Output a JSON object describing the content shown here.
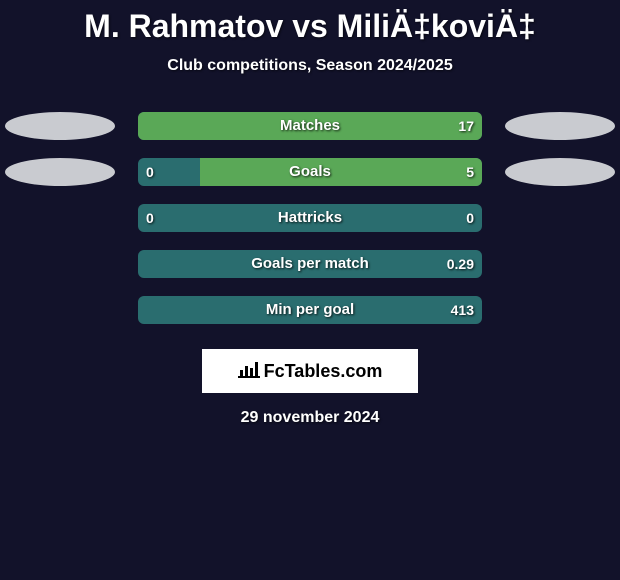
{
  "title": "M. Rahmatov vs MiliÄ‡koviÄ‡",
  "subtitle": "Club competitions, Season 2024/2025",
  "background_color": "#12122a",
  "player_colors": {
    "left": "#c9cbd0",
    "right": "#c9cbd0"
  },
  "bar_track_color": "#2a6d6f",
  "bar_fill_left_color": "#5aa857",
  "bar_fill_right_color": "#5aa857",
  "stats": [
    {
      "label": "Matches",
      "left_value": "",
      "right_value": "17",
      "left_fill_pct": 0,
      "right_fill_pct": 100,
      "show_ellipses": true
    },
    {
      "label": "Goals",
      "left_value": "0",
      "right_value": "5",
      "left_fill_pct": 0,
      "right_fill_pct": 82,
      "show_ellipses": true
    },
    {
      "label": "Hattricks",
      "left_value": "0",
      "right_value": "0",
      "left_fill_pct": 0,
      "right_fill_pct": 0,
      "show_ellipses": false
    },
    {
      "label": "Goals per match",
      "left_value": "",
      "right_value": "0.29",
      "left_fill_pct": 0,
      "right_fill_pct": 0,
      "show_ellipses": false
    },
    {
      "label": "Min per goal",
      "left_value": "",
      "right_value": "413",
      "left_fill_pct": 0,
      "right_fill_pct": 0,
      "show_ellipses": false
    }
  ],
  "logo_text": "FcTables.com",
  "date": "29 november 2024"
}
